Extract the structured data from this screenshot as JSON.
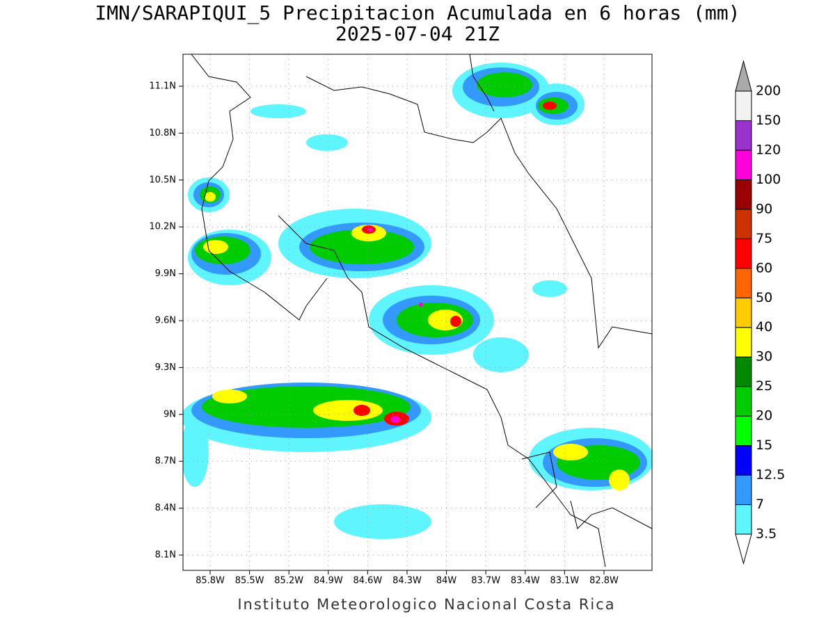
{
  "title": "IMN/SARAPIQUI_5 Precipitacion Acumulada en 6 horas (mm)",
  "subtitle": "2025-07-04 21Z",
  "map": {
    "lat_ticks": [
      "11.1N",
      "10.8N",
      "10.5N",
      "10.2N",
      "9.9N",
      "9.6N",
      "9.3N",
      "9N",
      "8.7N",
      "8.4N",
      "8.1N"
    ],
    "lon_ticks": [
      "85.8W",
      "85.5W",
      "85.2W",
      "84.9W",
      "84.6W",
      "84.3W",
      "84W",
      "83.7W",
      "83.4W",
      "83.1W",
      "82.8W"
    ]
  },
  "colorbar": {
    "levels": [
      3.5,
      7,
      12.5,
      15,
      20,
      25,
      30,
      40,
      50,
      60,
      75,
      90,
      100,
      120,
      150,
      200
    ],
    "colors": [
      "#5ff5ff",
      "#3399ff",
      "#0000ff",
      "#00ff00",
      "#00cc00",
      "#008800",
      "#ffff00",
      "#ffcc00",
      "#ff6600",
      "#ff0000",
      "#cc3300",
      "#990000",
      "#ff00dd",
      "#9933cc",
      "#f2f2f2"
    ],
    "under_color": "#ffffff",
    "over_color": "#aaaaaa"
  },
  "footer": "Instituto Meteorologico Nacional Costa Rica"
}
